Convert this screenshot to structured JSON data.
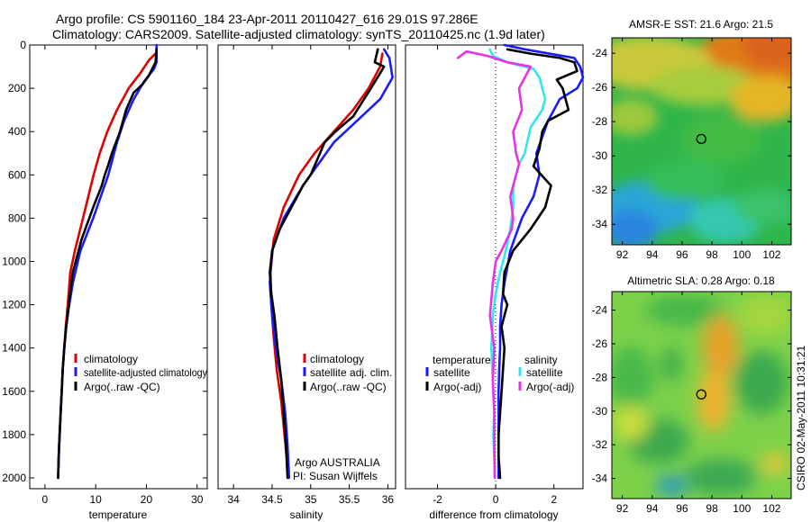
{
  "header": {
    "line1": "Argo profile: CS 5901160_184 23-Apr-2011 20110427_616 29.01S 97.286E",
    "line2": "Climatology: CARS2009. Satellite-adjusted climatology: synTS_20110425.nc (1.9d later)"
  },
  "footer": {
    "credit_lines": [
      "Argo AUSTRALIA",
      "PI: Susan Wijffels"
    ],
    "csiro_stamp": "CSIRO 02-May-2011 10:31:21"
  },
  "colors": {
    "climatology": "#e00000",
    "satellite": "#1a1aff",
    "argo": "#000000",
    "temp_diff_satellite": "#1a1aff",
    "temp_diff_argo": "#000000",
    "sal_diff_satellite": "#33e5f0",
    "sal_diff_argo": "#e633e6"
  },
  "chart_data": [
    {
      "id": "temperature",
      "type": "line",
      "xlabel": "temperature",
      "ylabel": "",
      "xlim": [
        -3,
        32
      ],
      "ylim": [
        2050,
        0
      ],
      "xticks": [
        0,
        10,
        20,
        30
      ],
      "yticks": [
        0,
        200,
        400,
        600,
        800,
        1000,
        1200,
        1400,
        1600,
        1800,
        2000
      ],
      "legend": [
        "climatology",
        "satellite-adjusted climatology",
        "Argo(..raw -QC)"
      ],
      "series": [
        {
          "name": "climatology",
          "color_key": "climatology",
          "x": [
            21.8,
            20.5,
            18.8,
            16.5,
            14.2,
            12.3,
            10.8,
            9.6,
            7.5,
            5.9,
            5.0,
            4.5,
            4.1,
            3.8,
            3.5,
            3.3,
            3.1,
            2.8,
            2.6
          ],
          "y": [
            40,
            70,
            130,
            200,
            300,
            400,
            500,
            600,
            800,
            950,
            1050,
            1200,
            1300,
            1400,
            1500,
            1600,
            1700,
            1850,
            2000
          ]
        },
        {
          "name": "satellite-adjusted climatology",
          "color_key": "satellite",
          "x": [
            22.0,
            22.0,
            21.5,
            19.5,
            17.5,
            15.6,
            14.2,
            12.5,
            9.5,
            7.0,
            5.5,
            4.8,
            4.2,
            3.8,
            3.5,
            3.3,
            3.1,
            2.8,
            2.6
          ],
          "y": [
            0,
            80,
            110,
            170,
            250,
            350,
            450,
            600,
            800,
            950,
            1100,
            1200,
            1300,
            1400,
            1500,
            1600,
            1700,
            1850,
            2000
          ]
        },
        {
          "name": "Argo(..raw -QC)",
          "color_key": "argo",
          "x": [
            22.0,
            21.8,
            20.5,
            19.3,
            17.5,
            16.0,
            14.8,
            13.2,
            12.4,
            11.8,
            11.2,
            9.5,
            7.2,
            5.5,
            4.7,
            4.2,
            3.8,
            3.5,
            3.3,
            3.1,
            2.9,
            2.7,
            2.6
          ],
          "y": [
            20,
            80,
            140,
            180,
            220,
            300,
            400,
            500,
            560,
            600,
            650,
            750,
            900,
            1050,
            1200,
            1300,
            1400,
            1500,
            1600,
            1700,
            1800,
            1900,
            2000
          ]
        }
      ]
    },
    {
      "id": "salinity",
      "type": "line",
      "xlabel": "salinity",
      "ylabel": "",
      "xlim": [
        33.8,
        36.1
      ],
      "ylim": [
        2050,
        0
      ],
      "xticks": [
        34,
        34.5,
        35,
        35.5,
        36
      ],
      "xtick_labels": [
        "34",
        "34.5",
        "35",
        "35.5",
        "36"
      ],
      "legend": [
        "climatology",
        "satellite adj. clim.",
        "Argo(..raw -QC)"
      ],
      "series": [
        {
          "name": "climatology",
          "color_key": "climatology",
          "x": [
            35.93,
            35.9,
            35.75,
            35.55,
            35.3,
            35.05,
            34.85,
            34.65,
            34.52,
            34.48,
            34.49,
            34.52,
            34.56,
            34.62,
            34.66,
            34.7,
            34.71
          ],
          "y": [
            40,
            100,
            200,
            300,
            400,
            500,
            600,
            750,
            900,
            1050,
            1200,
            1350,
            1500,
            1650,
            1800,
            1950,
            2000
          ]
        },
        {
          "name": "satellite adj. clim.",
          "color_key": "satellite",
          "x": [
            35.95,
            36.02,
            36.06,
            35.9,
            35.6,
            35.3,
            35.1,
            34.9,
            34.65,
            34.5,
            34.47,
            34.5,
            34.55,
            34.62,
            34.67,
            34.7,
            34.72
          ],
          "y": [
            20,
            60,
            150,
            250,
            350,
            450,
            550,
            650,
            800,
            950,
            1100,
            1250,
            1400,
            1550,
            1700,
            1850,
            2000
          ]
        },
        {
          "name": "Argo(..raw -QC)",
          "color_key": "argo",
          "x": [
            35.87,
            35.83,
            35.95,
            35.9,
            35.78,
            35.55,
            35.32,
            35.18,
            35.12,
            35.0,
            34.9,
            34.75,
            34.6,
            34.5,
            34.47,
            34.49,
            34.53,
            34.57,
            34.62,
            34.65,
            34.68,
            34.7
          ],
          "y": [
            20,
            80,
            100,
            130,
            200,
            330,
            400,
            450,
            500,
            600,
            650,
            750,
            850,
            950,
            1050,
            1150,
            1250,
            1400,
            1550,
            1700,
            1850,
            2000
          ]
        }
      ]
    },
    {
      "id": "difference",
      "type": "line",
      "xlabel": "difference from climatology",
      "ylabel": "",
      "xlim": [
        -3.1,
        3.0
      ],
      "ylim": [
        2050,
        0
      ],
      "xticks": [
        -2,
        0,
        2
      ],
      "legend_groups": [
        {
          "title": "temperature",
          "entries": [
            "satellite",
            "Argo(-adj)"
          ]
        },
        {
          "title": "salinity",
          "entries": [
            "satellite",
            "Argo(-adj)"
          ]
        }
      ],
      "series": [
        {
          "name": "temperature satellite",
          "color_key": "temp_diff_satellite",
          "x": [
            0.3,
            1.0,
            2.7,
            2.9,
            3.0,
            2.8,
            2.2,
            1.8,
            1.4,
            1.5,
            1.3,
            0.9,
            0.5,
            0.3,
            0.2,
            0.15,
            0.15,
            0.12,
            0.1,
            0.1,
            0.1,
            0.1
          ],
          "y": [
            0,
            20,
            60,
            100,
            150,
            200,
            250,
            350,
            500,
            600,
            700,
            800,
            950,
            1100,
            1200,
            1300,
            1400,
            1500,
            1600,
            1750,
            1900,
            2000
          ]
        },
        {
          "name": "temperature Argo(-adj)",
          "color_key": "temp_diff_argo",
          "x": [
            0.4,
            1.2,
            2.2,
            2.7,
            2.8,
            2.1,
            2.3,
            2.5,
            1.8,
            1.6,
            1.5,
            1.3,
            1.9,
            1.7,
            1.2,
            0.6,
            0.3,
            0.25,
            0.4,
            0.2,
            0.3,
            0.25,
            0.2,
            0.15,
            0.1,
            0.1,
            0.15
          ],
          "y": [
            20,
            40,
            60,
            80,
            120,
            160,
            200,
            300,
            350,
            400,
            480,
            560,
            650,
            750,
            850,
            950,
            1050,
            1150,
            1200,
            1300,
            1400,
            1500,
            1600,
            1700,
            1800,
            1900,
            2000
          ]
        },
        {
          "name": "salinity satellite",
          "color_key": "sal_diff_satellite",
          "x": [
            -0.2,
            -0.1,
            0.4,
            1.3,
            1.5,
            1.7,
            1.6,
            1.2,
            1.0,
            0.8,
            0.6,
            0.6,
            0.5,
            0.35,
            0.15,
            0.0,
            -0.1,
            -0.15,
            -0.1,
            -0.05,
            -0.08,
            -0.05,
            -0.03
          ],
          "y": [
            20,
            50,
            80,
            110,
            150,
            250,
            300,
            380,
            500,
            550,
            650,
            750,
            850,
            950,
            1050,
            1150,
            1250,
            1400,
            1550,
            1700,
            1800,
            1900,
            2000
          ]
        },
        {
          "name": "salinity Argo(-adj)",
          "color_key": "sal_diff_argo",
          "x": [
            -1.3,
            -1.0,
            -0.3,
            0.4,
            1.2,
            0.8,
            0.9,
            0.6,
            0.7,
            0.8,
            0.6,
            0.5,
            0.6,
            0.55,
            0.2,
            0.0,
            -0.1,
            -0.2,
            -0.05,
            -0.1,
            -0.05,
            -0.05,
            -0.03
          ],
          "y": [
            60,
            30,
            50,
            80,
            100,
            200,
            300,
            400,
            500,
            550,
            650,
            700,
            800,
            850,
            950,
            1000,
            1100,
            1250,
            1400,
            1550,
            1700,
            1850,
            2000
          ]
        }
      ]
    },
    {
      "id": "sst_map",
      "type": "heatmap",
      "title": "AMSR-E SST: 21.6 Argo: 21.5",
      "xlim": [
        91.3,
        103.3
      ],
      "ylim": [
        -35.2,
        -23.1
      ],
      "xticks": [
        92,
        94,
        96,
        98,
        100,
        102
      ],
      "yticks": [
        -24,
        -26,
        -28,
        -30,
        -32,
        -34
      ],
      "marker": {
        "lon": 97.286,
        "lat": -29.01
      }
    },
    {
      "id": "sla_map",
      "type": "heatmap",
      "title": "Altimetric SLA: 0.28 Argo: 0.18",
      "xlim": [
        91.3,
        103.3
      ],
      "ylim": [
        -35.2,
        -22.9
      ],
      "xticks": [
        92,
        94,
        96,
        98,
        100,
        102
      ],
      "yticks": [
        -24,
        -26,
        -28,
        -30,
        -32,
        -34
      ],
      "marker": {
        "lon": 97.286,
        "lat": -29.01
      }
    }
  ]
}
